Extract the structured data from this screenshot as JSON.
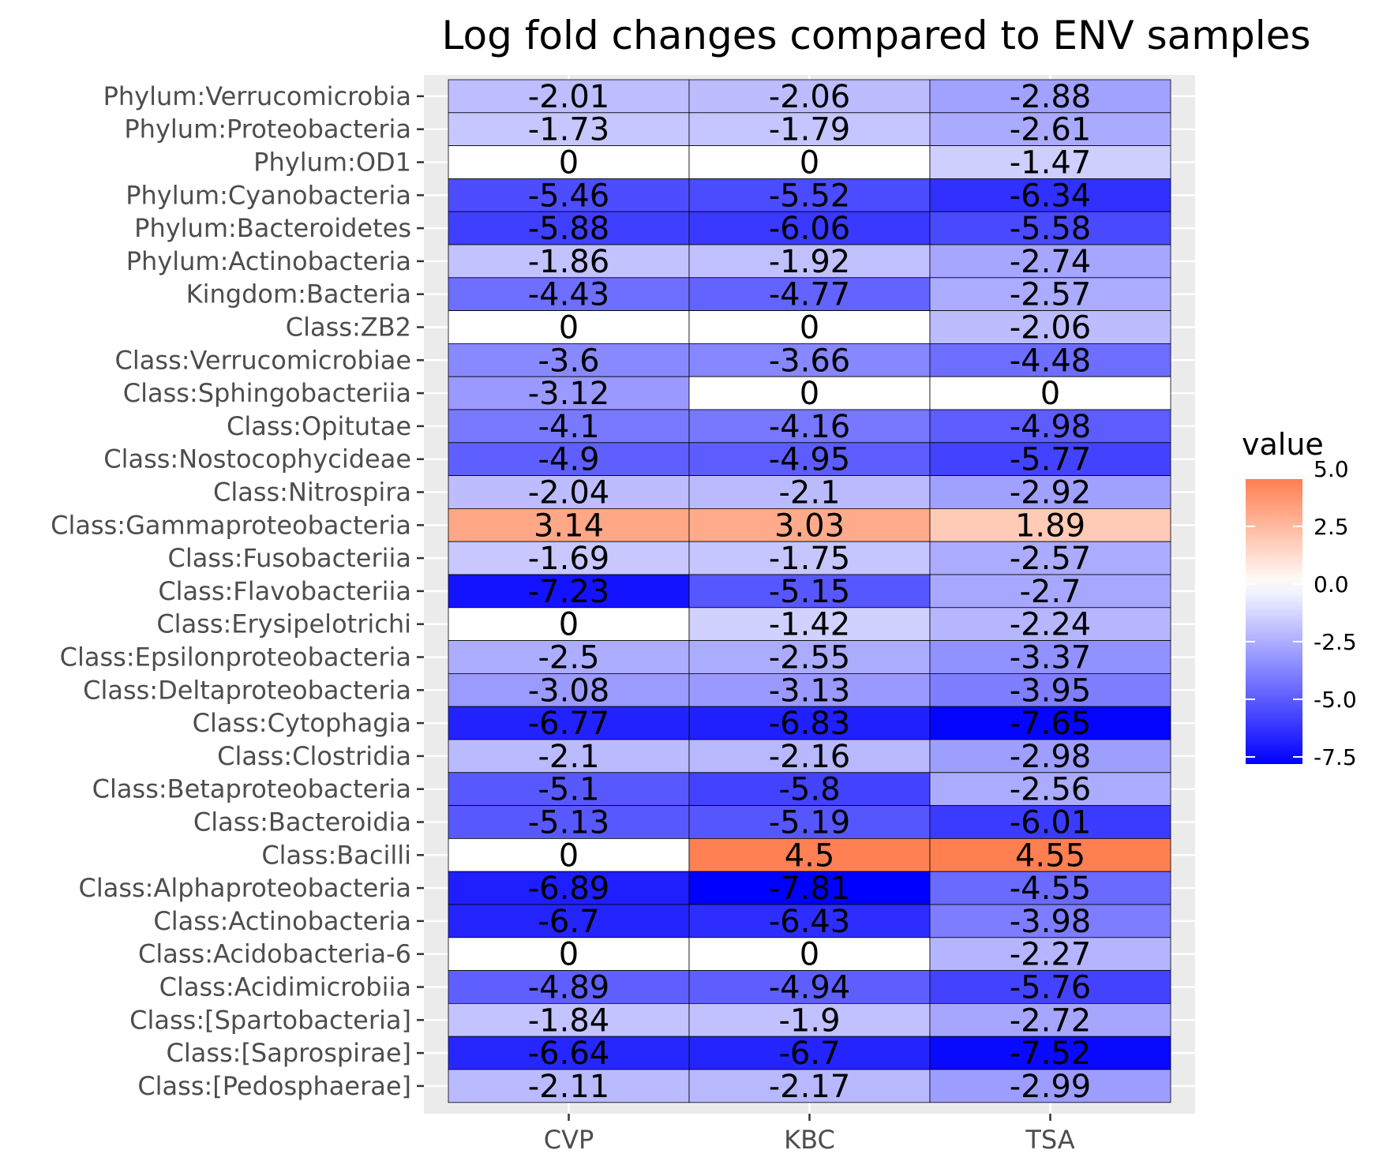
{
  "chart_data": {
    "type": "heatmap",
    "title": "Log fold changes compared to ENV samples",
    "xlabel": "",
    "ylabel": "",
    "x": [
      "CVP",
      "KBC",
      "TSA"
    ],
    "y": [
      "Phylum:Verrucomicrobia",
      "Phylum:Proteobacteria",
      "Phylum:OD1",
      "Phylum:Cyanobacteria",
      "Phylum:Bacteroidetes",
      "Phylum:Actinobacteria",
      "Kingdom:Bacteria",
      "Class:ZB2",
      "Class:Verrucomicrobiae",
      "Class:Sphingobacteriia",
      "Class:Opitutae",
      "Class:Nostocophycideae",
      "Class:Nitrospira",
      "Class:Gammaproteobacteria",
      "Class:Fusobacteriia",
      "Class:Flavobacteriia",
      "Class:Erysipelotrichi",
      "Class:Epsilonproteobacteria",
      "Class:Deltaproteobacteria",
      "Class:Cytophagia",
      "Class:Clostridia",
      "Class:Betaproteobacteria",
      "Class:Bacteroidia",
      "Class:Bacilli",
      "Class:Alphaproteobacteria",
      "Class:Actinobacteria",
      "Class:Acidobacteria-6",
      "Class:Acidimicrobiia",
      "Class:[Spartobacteria]",
      "Class:[Saprospirae]",
      "Class:[Pedosphaerae]"
    ],
    "values": [
      [
        -2.01,
        -2.06,
        -2.88
      ],
      [
        -1.73,
        -1.79,
        -2.61
      ],
      [
        0,
        0,
        -1.47
      ],
      [
        -5.46,
        -5.52,
        -6.34
      ],
      [
        -5.88,
        -6.06,
        -5.58
      ],
      [
        -1.86,
        -1.92,
        -2.74
      ],
      [
        -4.43,
        -4.77,
        -2.57
      ],
      [
        0,
        0,
        -2.06
      ],
      [
        -3.6,
        -3.66,
        -4.48
      ],
      [
        -3.12,
        0,
        0
      ],
      [
        -4.1,
        -4.16,
        -4.98
      ],
      [
        -4.9,
        -4.95,
        -5.77
      ],
      [
        -2.04,
        -2.1,
        -2.92
      ],
      [
        3.14,
        3.03,
        1.89
      ],
      [
        -1.69,
        -1.75,
        -2.57
      ],
      [
        -7.23,
        -5.15,
        -2.7
      ],
      [
        0,
        -1.42,
        -2.24
      ],
      [
        -2.5,
        -2.55,
        -3.37
      ],
      [
        -3.08,
        -3.13,
        -3.95
      ],
      [
        -6.77,
        -6.83,
        -7.65
      ],
      [
        -2.1,
        -2.16,
        -2.98
      ],
      [
        -5.1,
        -5.8,
        -2.56
      ],
      [
        -5.13,
        -5.19,
        -6.01
      ],
      [
        0,
        4.5,
        4.55
      ],
      [
        -6.89,
        -7.81,
        -4.55
      ],
      [
        -6.7,
        -6.43,
        -3.98
      ],
      [
        0,
        0,
        -2.27
      ],
      [
        -4.89,
        -4.94,
        -5.76
      ],
      [
        -1.84,
        -1.9,
        -2.72
      ],
      [
        -6.64,
        -6.7,
        -7.52
      ],
      [
        -2.11,
        -2.17,
        -2.99
      ]
    ],
    "legend": {
      "title": "value",
      "position": "right",
      "ticks": [
        "5.0",
        "2.5",
        "0.0",
        "-2.5",
        "-5.0",
        "-7.5"
      ],
      "tick_values": [
        5.0,
        2.5,
        0.0,
        -2.5,
        -5.0,
        -7.5
      ],
      "range": [
        -7.81,
        4.55
      ]
    },
    "colors": {
      "low": "#0000FF",
      "mid": "#FFFFFF",
      "high": "#FF7F50",
      "panel_background": "#EBEBEB",
      "cell_border": "#000000"
    },
    "grid": true
  }
}
